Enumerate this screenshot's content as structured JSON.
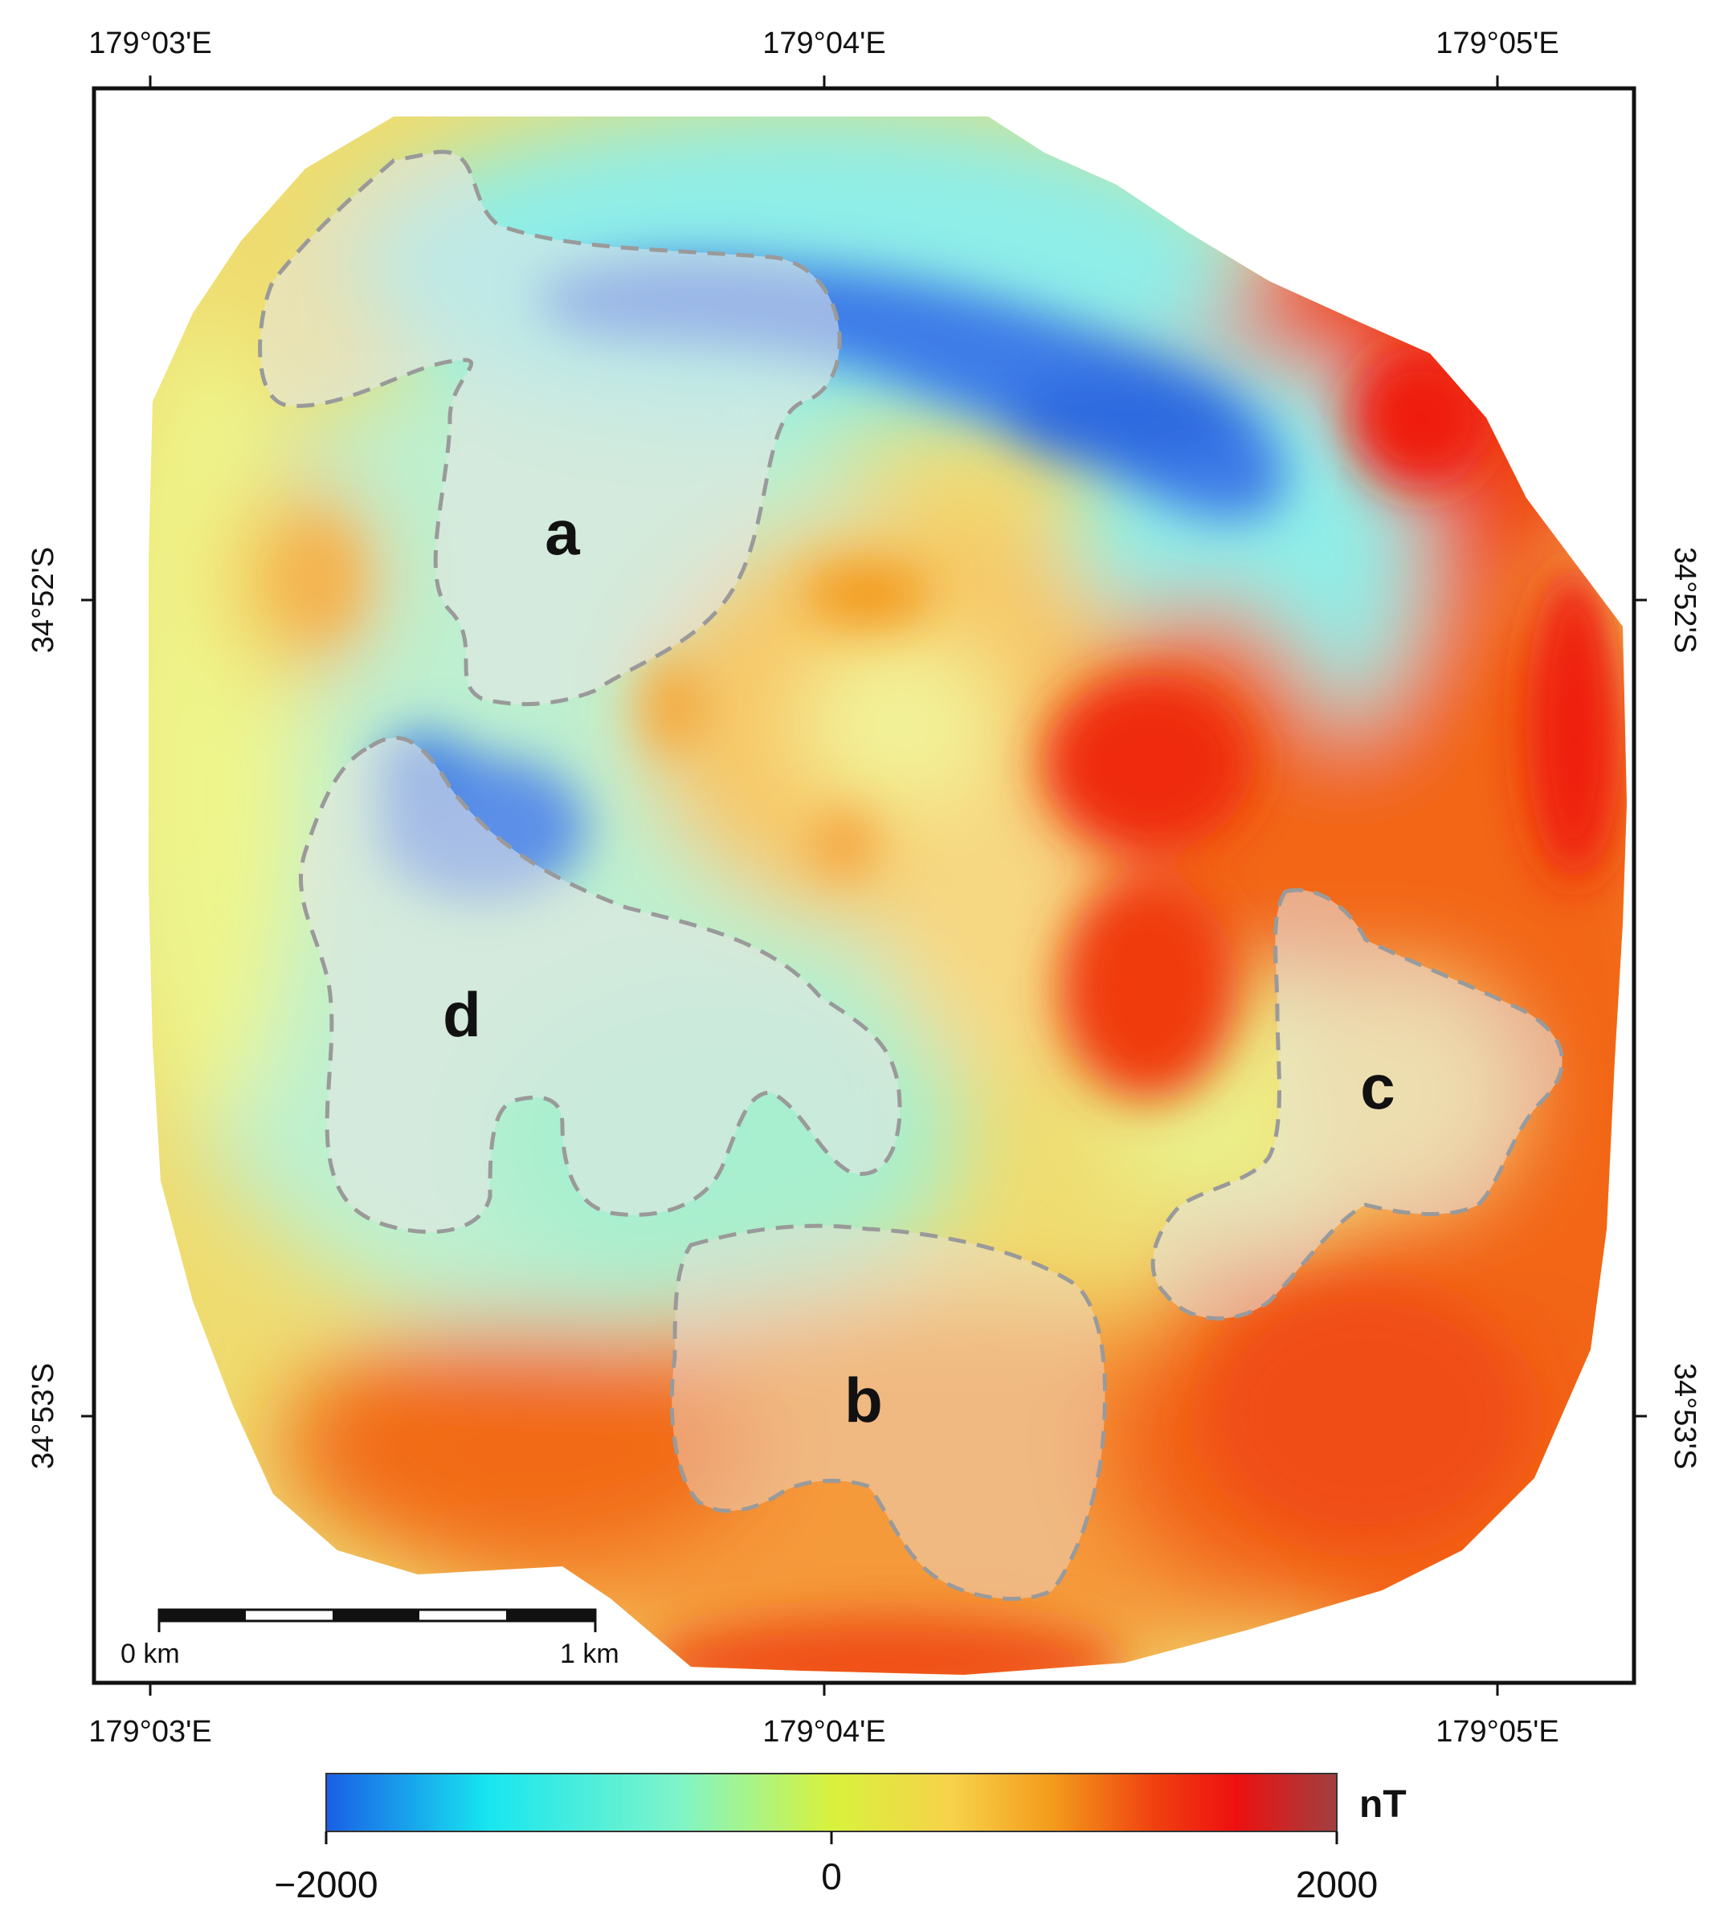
{
  "map": {
    "lon_labels": [
      "179°03'E",
      "179°04'E",
      "179°05'E"
    ],
    "lat_labels": [
      "34°52'S",
      "34°53'S"
    ],
    "zones": [
      "a",
      "b",
      "c",
      "d"
    ],
    "scale_bar": {
      "start_label": "0 km",
      "end_label": "1 km"
    },
    "colorbar": {
      "min_label": "−2000",
      "mid_label": "0",
      "max_label": "2000",
      "unit": "nT",
      "colors": [
        "#1a5ee6",
        "#17e6f0",
        "#7ff5c8",
        "#d8f23c",
        "#f7d24a",
        "#f39a1a",
        "#f04010",
        "#ee1010",
        "#a04040"
      ]
    },
    "palette": {
      "very_low": "#3d7ce8",
      "low": "#6fb6ef",
      "cyan": "#86ecec",
      "green": "#b3f0c8",
      "yellow": "#eef58a",
      "light_orange": "#f7c766",
      "orange": "#f59a3a",
      "red_orange": "#f26616",
      "red": "#ef2a0c"
    }
  }
}
